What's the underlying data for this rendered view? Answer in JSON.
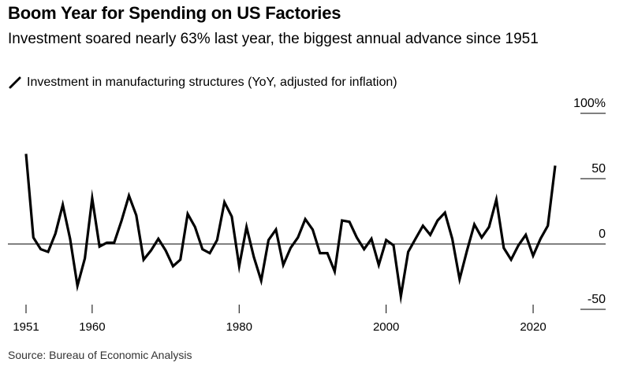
{
  "title": "Boom Year for Spending on US Factories",
  "subtitle": "Investment soared nearly 63% last year, the biggest annual advance since 1951",
  "source": "Source: Bureau of Economic Analysis",
  "legend_icon": "diagonal-line-icon",
  "chart_data": {
    "type": "line",
    "legend": [
      "Investment in manufacturing structures (YoY, adjusted for inflation)"
    ],
    "xlabel": "",
    "ylabel": "",
    "xlim": [
      1951,
      2023
    ],
    "ylim": [
      -50,
      100
    ],
    "y_ticks": [
      {
        "value": 100,
        "label": "100%"
      },
      {
        "value": 50,
        "label": "50"
      },
      {
        "value": 0,
        "label": "0"
      },
      {
        "value": -50,
        "label": "-50"
      }
    ],
    "x_ticks": [
      {
        "value": 1951,
        "label": "1951"
      },
      {
        "value": 1960,
        "label": "1960"
      },
      {
        "value": 1980,
        "label": "1980"
      },
      {
        "value": 2000,
        "label": "2000"
      },
      {
        "value": 2020,
        "label": "2020"
      }
    ],
    "series": [
      {
        "name": "Investment in manufacturing structures (YoY, adjusted for inflation)",
        "color": "#000000",
        "x": [
          1951,
          1952,
          1953,
          1954,
          1955,
          1956,
          1957,
          1958,
          1959,
          1960,
          1961,
          1962,
          1963,
          1964,
          1965,
          1966,
          1967,
          1968,
          1969,
          1970,
          1971,
          1972,
          1973,
          1974,
          1975,
          1976,
          1977,
          1978,
          1979,
          1980,
          1981,
          1982,
          1983,
          1984,
          1985,
          1986,
          1987,
          1988,
          1989,
          1990,
          1991,
          1992,
          1993,
          1994,
          1995,
          1996,
          1997,
          1998,
          1999,
          2000,
          2001,
          2002,
          2003,
          2004,
          2005,
          2006,
          2007,
          2008,
          2009,
          2010,
          2011,
          2012,
          2013,
          2014,
          2015,
          2016,
          2017,
          2018,
          2019,
          2020,
          2021,
          2022,
          2023
        ],
        "y": [
          69,
          5,
          -4,
          -6,
          8,
          30,
          4,
          -32,
          -11,
          35,
          -2,
          1,
          1,
          18,
          37,
          22,
          -12,
          -5,
          4,
          -5,
          -17,
          -12,
          23,
          13,
          -4,
          -7,
          3,
          32,
          21,
          -17,
          13,
          -10,
          -28,
          3,
          11,
          -16,
          -3,
          5,
          19,
          11,
          -7,
          -7,
          -21,
          18,
          17,
          5,
          -4,
          4,
          -16,
          3,
          -1,
          -40,
          -6,
          4,
          14,
          7,
          18,
          24,
          4,
          -27,
          -5,
          15,
          5,
          13,
          34,
          -3,
          -12,
          -1,
          7,
          -9,
          4,
          14,
          60
        ]
      }
    ]
  }
}
